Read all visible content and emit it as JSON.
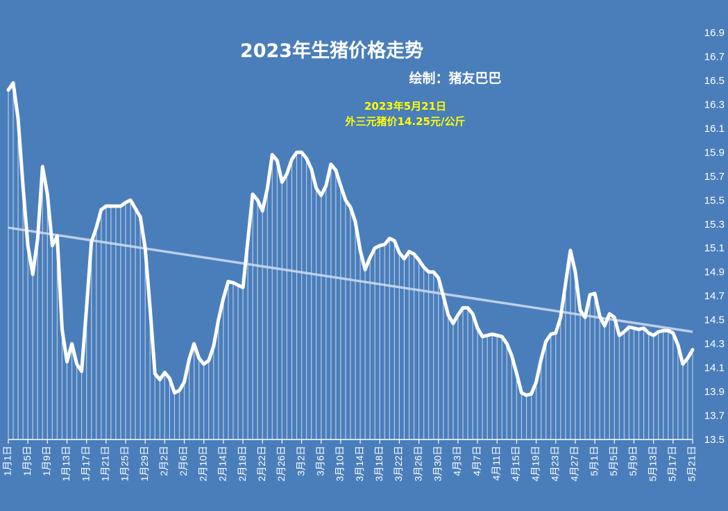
{
  "chart_data": {
    "type": "area",
    "title": "2023年生猪价格走势",
    "subtitle": "绘制：猪友巴巴",
    "annotation_date": "2023年5月21日",
    "annotation_price": "外三元猪价14.25元/公斤",
    "xlabel": "",
    "ylabel": "",
    "ylim": [
      13.5,
      16.9
    ],
    "yticks": [
      "13.5",
      "13.7",
      "13.9",
      "14.1",
      "14.3",
      "14.5",
      "14.7",
      "14.9",
      "15.1",
      "15.3",
      "15.5",
      "15.7",
      "15.9",
      "16.1",
      "16.3",
      "16.5",
      "16.7",
      "16.9"
    ],
    "y_axis_position": "right",
    "xticks": [
      "1月1日",
      "1月5日",
      "1月9日",
      "1月13日",
      "1月17日",
      "1月21日",
      "1月25日",
      "1月29日",
      "2月2日",
      "2月6日",
      "2月10日",
      "2月14日",
      "2月18日",
      "2月22日",
      "2月26日",
      "3月2日",
      "3月6日",
      "3月10日",
      "3月14日",
      "3月18日",
      "3月22日",
      "3月26日",
      "3月30日",
      "4月3日",
      "4月7日",
      "4月11日",
      "4月15日",
      "4月19日",
      "4月23日",
      "4月27日",
      "5月1日",
      "5月5日",
      "5月9日",
      "5月13日",
      "5月17日",
      "5月21日"
    ],
    "grid": false,
    "legend": "none",
    "trendline": {
      "start": 15.27,
      "end": 14.4
    },
    "colors": {
      "background": "#4a7ebb",
      "line": "#ffffff",
      "trend": "#c9d8ee",
      "annotation": "#ffff00"
    },
    "series": [
      {
        "values": [
          16.42,
          16.48,
          16.18,
          15.62,
          15.12,
          14.88,
          15.18,
          15.78,
          15.55,
          15.12,
          15.2,
          14.42,
          14.15,
          14.3,
          14.13,
          14.07,
          14.6,
          15.15,
          15.27,
          15.42,
          15.45,
          15.45,
          15.45,
          15.45,
          15.48,
          15.5,
          15.43,
          15.36,
          15.1,
          14.6,
          14.05,
          14.0,
          14.06,
          14.01,
          13.89,
          13.91,
          13.98,
          14.17,
          14.3,
          14.18,
          14.13,
          14.16,
          14.28,
          14.5,
          14.68,
          14.82,
          14.81,
          14.79,
          14.77,
          15.16,
          15.55,
          15.5,
          15.41,
          15.6,
          15.88,
          15.83,
          15.65,
          15.72,
          15.84,
          15.9,
          15.9,
          15.85,
          15.76,
          15.6,
          15.54,
          15.62,
          15.8,
          15.75,
          15.62,
          15.5,
          15.44,
          15.32,
          15.08,
          14.92,
          15.02,
          15.1,
          15.12,
          15.13,
          15.18,
          15.16,
          15.06,
          15.01,
          15.07,
          15.05,
          15.0,
          14.94,
          14.9,
          14.9,
          14.85,
          14.7,
          14.54,
          14.47,
          14.54,
          14.6,
          14.6,
          14.55,
          14.43,
          14.36,
          14.37,
          14.38,
          14.37,
          14.36,
          14.3,
          14.2,
          14.05,
          13.89,
          13.87,
          13.88,
          13.98,
          14.17,
          14.32,
          14.38,
          14.39,
          14.52,
          14.8,
          15.08,
          14.9,
          14.58,
          14.52,
          14.71,
          14.72,
          14.53,
          14.45,
          14.55,
          14.52,
          14.37,
          14.4,
          14.44,
          14.43,
          14.42,
          14.43,
          14.39,
          14.37,
          14.4,
          14.41,
          14.41,
          14.39,
          14.29,
          14.13,
          14.18,
          14.25
        ]
      }
    ]
  }
}
